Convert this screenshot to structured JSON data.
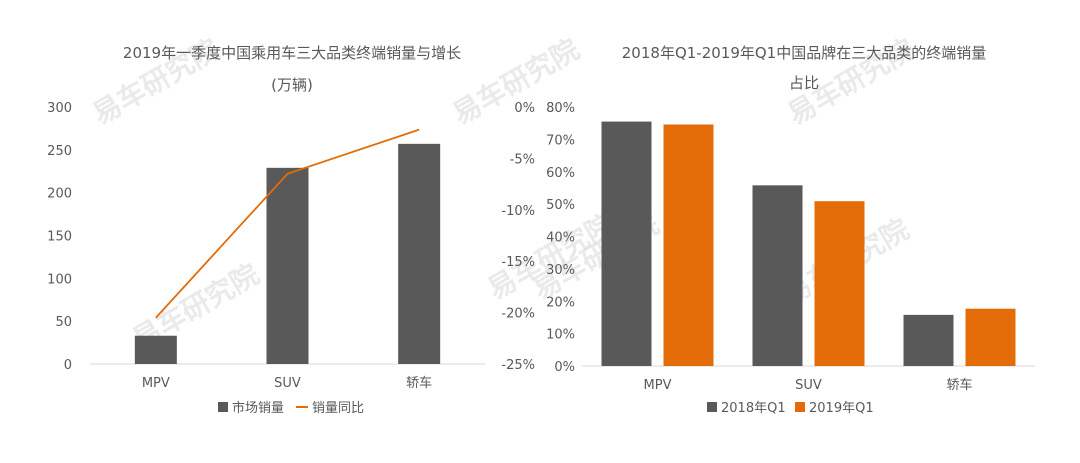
{
  "watermark_text": "易车研究院",
  "colors": {
    "bar_gray": "#595959",
    "orange": "#E36C09",
    "text": "#595959",
    "axis": "#d9d9d9"
  },
  "chart_data": [
    {
      "type": "bar",
      "title_lines": [
        "2019年一季度中国乘用车三大品类终端销量与增长",
        "(万辆)"
      ],
      "categories": [
        "MPV",
        "SUV",
        "轿车"
      ],
      "series": [
        {
          "name": "市场销量",
          "type": "bar",
          "axis": "left",
          "values": [
            33,
            229,
            257
          ]
        },
        {
          "name": "销量同比",
          "type": "line",
          "axis": "right",
          "values": [
            -20.5,
            -6.5,
            -2.2
          ]
        }
      ],
      "y_left": {
        "ylim": [
          0,
          300
        ],
        "ticks": [
          0,
          50,
          100,
          150,
          200,
          250,
          300
        ]
      },
      "y_right": {
        "ylim": [
          -25,
          0
        ],
        "ticks": [
          "0%",
          "-5%",
          "-10%",
          "-15%",
          "-20%",
          "-25%"
        ]
      },
      "legend_position": "bottom"
    },
    {
      "type": "bar",
      "title_lines": [
        "2018年Q1-2019年Q1中国品牌在三大品类的终端销量",
        "占比"
      ],
      "categories": [
        "MPV",
        "SUV",
        "轿车"
      ],
      "series": [
        {
          "name": "2018年Q1",
          "values": [
            75.5,
            55.8,
            15.8
          ]
        },
        {
          "name": "2019年Q1",
          "values": [
            74.6,
            50.9,
            17.7
          ]
        }
      ],
      "y": {
        "ylim": [
          0,
          80
        ],
        "ticks": [
          "0%",
          "10%",
          "20%",
          "30%",
          "40%",
          "50%",
          "60%",
          "70%",
          "80%"
        ]
      },
      "legend_position": "bottom"
    }
  ]
}
